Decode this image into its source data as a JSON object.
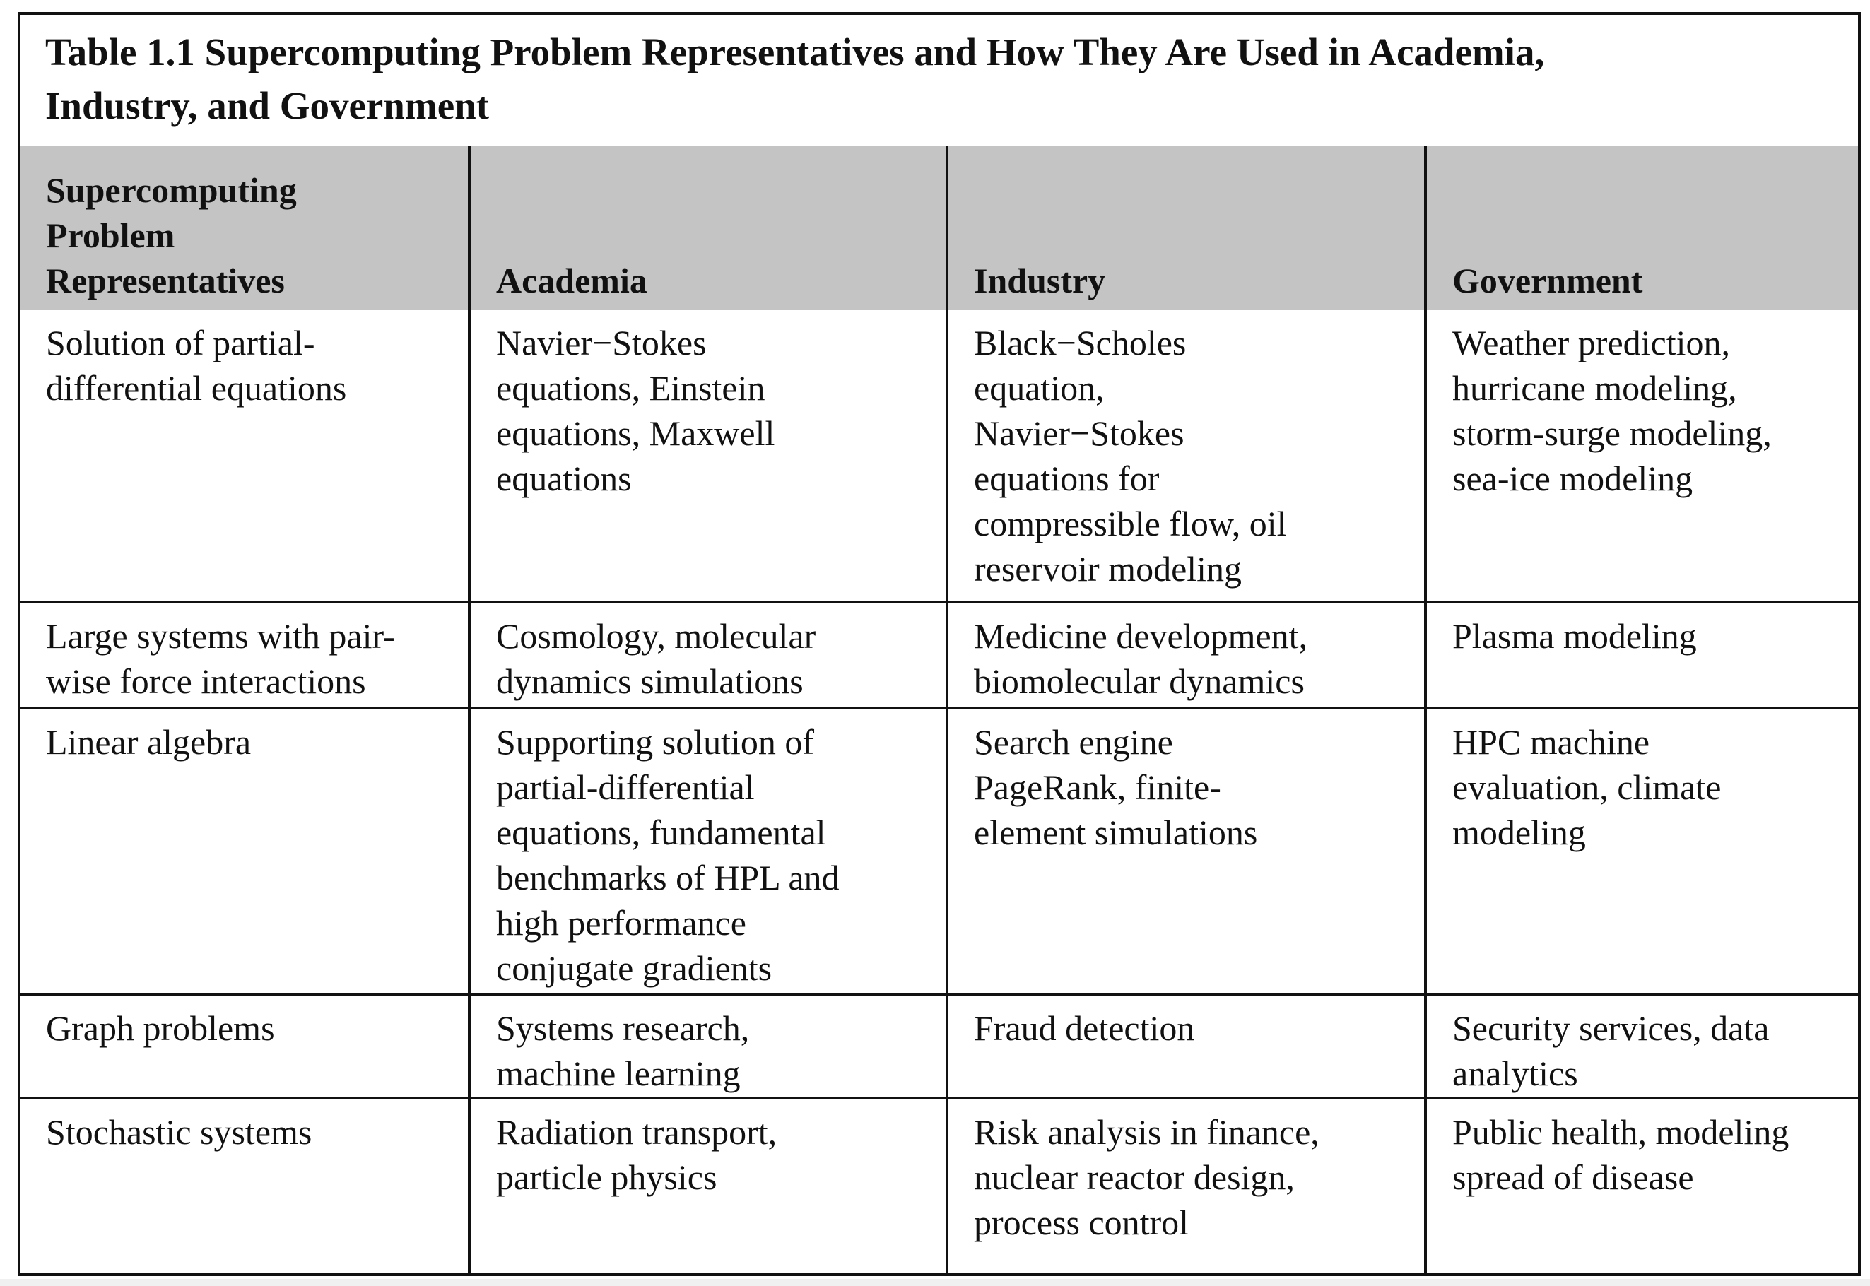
{
  "table": {
    "title": "Table 1.1  Supercomputing Problem Representatives and How They Are Used in Academia,\nIndustry, and Government",
    "header_fill": "#c4c4c4",
    "columns": [
      "Supercomputing\nProblem\nRepresentatives",
      "Academia",
      "Industry",
      "Government"
    ],
    "rows": [
      [
        "Solution of partial-\ndifferential equations",
        "Navier−Stokes\nequations, Einstein\nequations, Maxwell\nequations",
        "Black−Scholes\nequation,\nNavier−Stokes\nequations for\ncompressible flow, oil\nreservoir modeling",
        "Weather prediction,\nhurricane modeling,\nstorm-surge modeling,\nsea-ice modeling"
      ],
      [
        "Large systems with pair-\nwise force interactions",
        "Cosmology, molecular\ndynamics simulations",
        "Medicine development,\nbiomolecular dynamics",
        "Plasma modeling"
      ],
      [
        "Linear algebra",
        "Supporting solution of\npartial-differential\nequations, fundamental\nbenchmarks of HPL and\nhigh performance\nconjugate gradients",
        "Search engine\nPageRank, finite-\nelement simulations",
        "HPC machine\nevaluation, climate\nmodeling"
      ],
      [
        "Graph problems",
        "Systems research,\nmachine learning",
        "Fraud detection",
        "Security services, data\nanalytics"
      ],
      [
        "Stochastic systems",
        "Radiation transport,\nparticle physics",
        "Risk analysis in finance,\nnuclear reactor design,\nprocess control",
        "Public health, modeling\nspread of disease"
      ]
    ]
  }
}
